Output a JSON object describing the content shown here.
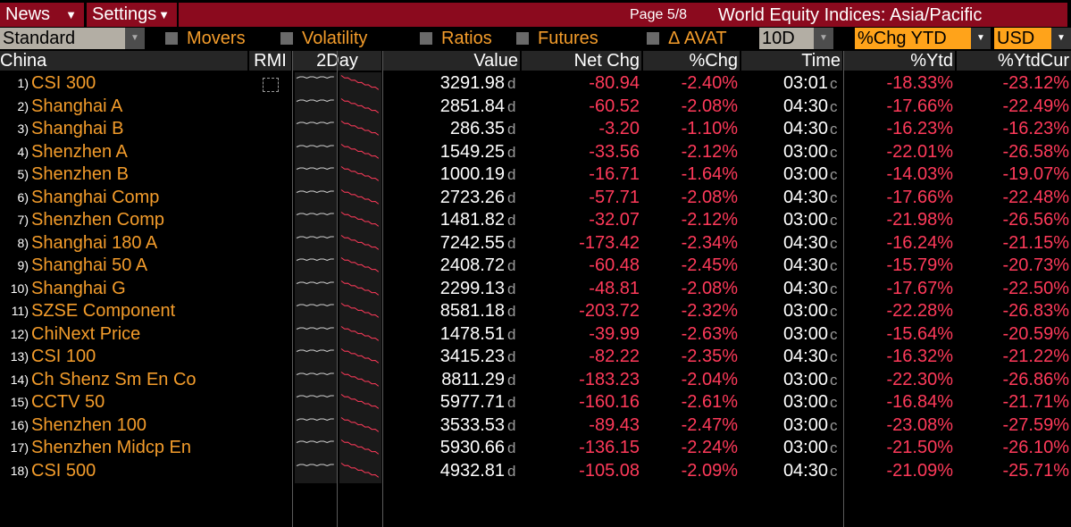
{
  "menu": {
    "news": "News",
    "settings": "Settings"
  },
  "header": {
    "page": "Page 5/8",
    "title": "World Equity Indices: Asia/Pacific"
  },
  "toolbar": {
    "view": "Standard",
    "checks": [
      "Movers",
      "Volatility",
      "Ratios",
      "Futures",
      "Δ AVAT"
    ],
    "period": "10D",
    "sort": "%Chg YTD",
    "currency": "USD"
  },
  "columns": {
    "region": "China",
    "rmi": "RMI",
    "twoday": "2Day",
    "value": "Value",
    "netchg": "Net Chg",
    "pctchg": "%Chg",
    "time": "Time",
    "ytd": "%Ytd",
    "ytdcur": "%YtdCur"
  },
  "rows": [
    {
      "num": "1)",
      "name": "CSI 300",
      "value": "3291.98",
      "vs": "d",
      "net": "-80.94",
      "pct": "-2.40%",
      "time": "03:01",
      "ts": "c",
      "ytd": "-18.33%",
      "ytdcur": "-23.12%"
    },
    {
      "num": "2)",
      "name": "Shanghai A",
      "value": "2851.84",
      "vs": "d",
      "net": "-60.52",
      "pct": "-2.08%",
      "time": "04:30",
      "ts": "c",
      "ytd": "-17.66%",
      "ytdcur": "-22.49%"
    },
    {
      "num": "3)",
      "name": "Shanghai B",
      "value": "286.35",
      "vs": "d",
      "net": "-3.20",
      "pct": "-1.10%",
      "time": "04:30",
      "ts": "c",
      "ytd": "-16.23%",
      "ytdcur": "-16.23%"
    },
    {
      "num": "4)",
      "name": "Shenzhen A",
      "value": "1549.25",
      "vs": "d",
      "net": "-33.56",
      "pct": "-2.12%",
      "time": "03:00",
      "ts": "c",
      "ytd": "-22.01%",
      "ytdcur": "-26.58%"
    },
    {
      "num": "5)",
      "name": "Shenzhen B",
      "value": "1000.19",
      "vs": "d",
      "net": "-16.71",
      "pct": "-1.64%",
      "time": "03:00",
      "ts": "c",
      "ytd": "-14.03%",
      "ytdcur": "-19.07%"
    },
    {
      "num": "6)",
      "name": "Shanghai Comp",
      "value": "2723.26",
      "vs": "d",
      "net": "-57.71",
      "pct": "-2.08%",
      "time": "04:30",
      "ts": "c",
      "ytd": "-17.66%",
      "ytdcur": "-22.48%"
    },
    {
      "num": "7)",
      "name": "Shenzhen Comp",
      "value": "1481.82",
      "vs": "d",
      "net": "-32.07",
      "pct": "-2.12%",
      "time": "03:00",
      "ts": "c",
      "ytd": "-21.98%",
      "ytdcur": "-26.56%"
    },
    {
      "num": "8)",
      "name": "Shanghai 180 A",
      "value": "7242.55",
      "vs": "d",
      "net": "-173.42",
      "pct": "-2.34%",
      "time": "04:30",
      "ts": "c",
      "ytd": "-16.24%",
      "ytdcur": "-21.15%"
    },
    {
      "num": "9)",
      "name": "Shanghai 50 A",
      "value": "2408.72",
      "vs": "d",
      "net": "-60.48",
      "pct": "-2.45%",
      "time": "04:30",
      "ts": "c",
      "ytd": "-15.79%",
      "ytdcur": "-20.73%"
    },
    {
      "num": "10)",
      "name": "Shanghai G",
      "value": "2299.13",
      "vs": "d",
      "net": "-48.81",
      "pct": "-2.08%",
      "time": "04:30",
      "ts": "c",
      "ytd": "-17.67%",
      "ytdcur": "-22.50%"
    },
    {
      "num": "11)",
      "name": "SZSE Component",
      "value": "8581.18",
      "vs": "d",
      "net": "-203.72",
      "pct": "-2.32%",
      "time": "03:00",
      "ts": "c",
      "ytd": "-22.28%",
      "ytdcur": "-26.83%"
    },
    {
      "num": "12)",
      "name": "ChiNext Price",
      "value": "1478.51",
      "vs": "d",
      "net": "-39.99",
      "pct": "-2.63%",
      "time": "03:00",
      "ts": "c",
      "ytd": "-15.64%",
      "ytdcur": "-20.59%"
    },
    {
      "num": "13)",
      "name": "CSI 100",
      "value": "3415.23",
      "vs": "d",
      "net": "-82.22",
      "pct": "-2.35%",
      "time": "04:30",
      "ts": "c",
      "ytd": "-16.32%",
      "ytdcur": "-21.22%"
    },
    {
      "num": "14)",
      "name": "Ch Shenz Sm En Co",
      "value": "8811.29",
      "vs": "d",
      "net": "-183.23",
      "pct": "-2.04%",
      "time": "03:00",
      "ts": "c",
      "ytd": "-22.30%",
      "ytdcur": "-26.86%"
    },
    {
      "num": "15)",
      "name": "CCTV 50",
      "value": "5977.71",
      "vs": "d",
      "net": "-160.16",
      "pct": "-2.61%",
      "time": "03:00",
      "ts": "c",
      "ytd": "-16.84%",
      "ytdcur": "-21.71%"
    },
    {
      "num": "16)",
      "name": "Shenzhen 100",
      "value": "3533.53",
      "vs": "d",
      "net": "-89.43",
      "pct": "-2.47%",
      "time": "03:00",
      "ts": "c",
      "ytd": "-23.08%",
      "ytdcur": "-27.59%"
    },
    {
      "num": "17)",
      "name": "Shenzhen Midcp En",
      "value": "5930.66",
      "vs": "d",
      "net": "-136.15",
      "pct": "-2.24%",
      "time": "03:00",
      "ts": "c",
      "ytd": "-21.50%",
      "ytdcur": "-26.10%"
    },
    {
      "num": "18)",
      "name": "CSI 500",
      "value": "4932.81",
      "vs": "d",
      "net": "-105.08",
      "pct": "-2.09%",
      "time": "04:30",
      "ts": "c",
      "ytd": "-21.09%",
      "ytdcur": "-25.71%"
    }
  ],
  "colors": {
    "orange": "#f39c2b",
    "negative": "#ff3a5a",
    "menu": "#8b0a1e"
  }
}
